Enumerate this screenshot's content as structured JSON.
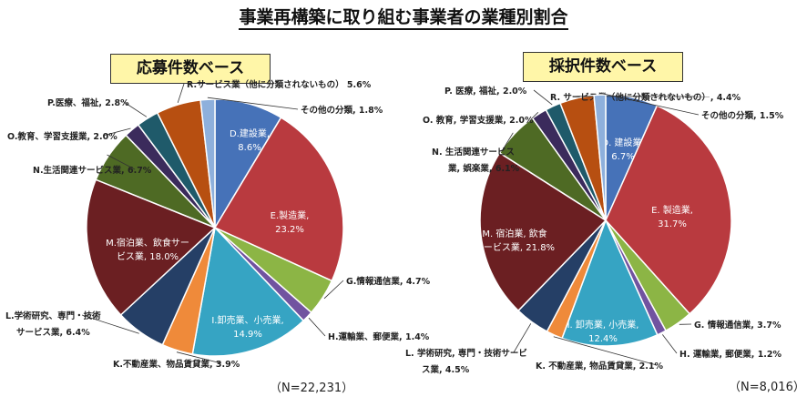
{
  "title": "事業再構築に取り組む事業者の業種別割合",
  "colors": {
    "construction": "#4672b8",
    "manufacturing": "#b93a3f",
    "info": "#8cb545",
    "transport": "#7153a0",
    "retail": "#36a4c3",
    "realestate": "#ef8a3a",
    "professional": "#253f66",
    "lodging": "#6b1f22",
    "living": "#4e6a24",
    "education": "#3b2b5c",
    "medical": "#1f5a6a",
    "other_service": "#b74f11",
    "other": "#8eb0dc"
  },
  "chart_data": [
    {
      "type": "pie",
      "title": "応募件数ベース",
      "n_label": "（N=22,231）",
      "slices": [
        {
          "key": "construction",
          "label": "D.建設業,",
          "pct": "8.6%",
          "value": 8.6,
          "inside": true
        },
        {
          "key": "manufacturing",
          "label": "E.製造業,",
          "pct": "23.2%",
          "value": 23.2,
          "inside": true
        },
        {
          "key": "info",
          "label": "G.情報通信業,",
          "pct": "4.7%",
          "value": 4.7,
          "inside": false
        },
        {
          "key": "transport",
          "label": "H.運輸業、郵便業,",
          "pct": "1.4%",
          "value": 1.4,
          "inside": false
        },
        {
          "key": "retail",
          "label": "I.卸売業、小売業,",
          "pct": "14.9%",
          "value": 14.9,
          "inside": true
        },
        {
          "key": "realestate",
          "label": "K.不動産業、物品賃貸業,",
          "pct": "3.9%",
          "value": 3.9,
          "inside": false
        },
        {
          "key": "professional",
          "label": "L.学術研究、専門・技術",
          "label2": "サービス業,",
          "pct": "6.4%",
          "value": 6.4,
          "inside": false
        },
        {
          "key": "lodging",
          "label": "M.宿泊業、飲食サー",
          "label2": "ビス業,",
          "pct": "18.0%",
          "value": 18.0,
          "inside": true
        },
        {
          "key": "living",
          "label": "N.生活関連サービス業,",
          "pct": "6.7%",
          "value": 6.7,
          "inside": false
        },
        {
          "key": "education",
          "label": "O.教育、学習支援業,",
          "pct": "2.0%",
          "value": 2.0,
          "inside": false
        },
        {
          "key": "medical",
          "label": "P.医療、福祉,",
          "pct": "2.8%",
          "value": 2.8,
          "inside": false
        },
        {
          "key": "other_service",
          "label": "R.サービス業（他に分類されないもの）",
          "pct": "5.6%",
          "value": 5.6,
          "inside": false
        },
        {
          "key": "other",
          "label": "その他の分類,",
          "pct": "1.8%",
          "value": 1.8,
          "inside": false
        }
      ]
    },
    {
      "type": "pie",
      "title": "採択件数ベース",
      "n_label": "（N=8,016）",
      "slices": [
        {
          "key": "construction",
          "label": "D. 建設業,",
          "pct": "6.7%",
          "value": 6.7,
          "inside": true
        },
        {
          "key": "manufacturing",
          "label": "E. 製造業,",
          "pct": "31.7%",
          "value": 31.7,
          "inside": true
        },
        {
          "key": "info",
          "label": "G. 情報通信業,",
          "pct": "3.7%",
          "value": 3.7,
          "inside": false
        },
        {
          "key": "transport",
          "label": "H. 運輸業, 郵便業,",
          "pct": "1.2%",
          "value": 1.2,
          "inside": false
        },
        {
          "key": "retail",
          "label": "I. 卸売業, 小売業,",
          "pct": "12.4%",
          "value": 12.4,
          "inside": true
        },
        {
          "key": "realestate",
          "label": "K. 不動産業, 物品賃貸業,",
          "pct": "2.1%",
          "value": 2.1,
          "inside": false
        },
        {
          "key": "professional",
          "label": "L. 学術研究, 専門・技術サービ",
          "label2": "ス業,",
          "pct": "4.5%",
          "value": 4.5,
          "inside": false
        },
        {
          "key": "lodging",
          "label": "M. 宿泊業, 飲食",
          "label2": "サービス業,",
          "pct": "21.8%",
          "value": 21.8,
          "inside": true
        },
        {
          "key": "living",
          "label": "N. 生活関連サービス",
          "label2": "業, 娯楽業,",
          "pct": "6.1%",
          "value": 6.1,
          "inside": false
        },
        {
          "key": "education",
          "label": "O. 教育, 学習支援業,",
          "pct": "2.0%",
          "value": 2.0,
          "inside": false
        },
        {
          "key": "medical",
          "label": "P. 医療, 福祉,",
          "pct": "2.0%",
          "value": 2.0,
          "inside": false
        },
        {
          "key": "other_service",
          "label": "R. サービス業（他に分類されないもの）,",
          "pct": "4.4%",
          "value": 4.4,
          "inside": false
        },
        {
          "key": "other",
          "label": "その他の分類,",
          "pct": "1.5%",
          "value": 1.5,
          "inside": false
        }
      ]
    }
  ]
}
